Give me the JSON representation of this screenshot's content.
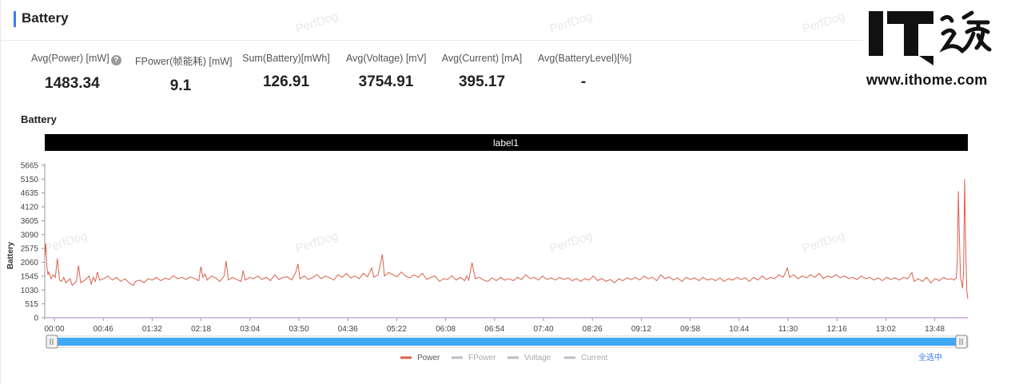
{
  "header": {
    "title": "Battery"
  },
  "stats": [
    {
      "label": "Avg(Power) [mW]",
      "value": "1483.34",
      "has_help": true
    },
    {
      "label": "FPower(帧能耗) [mW]",
      "value": "9.1",
      "has_help": false
    },
    {
      "label": "Sum(Battery)[mWh]",
      "value": "126.91",
      "has_help": false
    },
    {
      "label": "Avg(Voltage) [mV]",
      "value": "3754.91",
      "has_help": false
    },
    {
      "label": "Avg(Current) [mA]",
      "value": "395.17",
      "has_help": false
    },
    {
      "label": "Avg(BatteryLevel)[%]",
      "value": "-",
      "has_help": false
    }
  ],
  "watermark": "PerfDog",
  "logo": {
    "text": "IT之家",
    "url": "www.ithome.com"
  },
  "select_all_label": "全选中",
  "colors": {
    "accent": "#3b7cf4",
    "label_bar": "#ee5766",
    "power_line": "#d9604a",
    "slider": "#3fa9f5",
    "inactive_legend": "#b8bcc4"
  },
  "chart_data": {
    "type": "line",
    "title": "Battery",
    "ylabel": "Battery",
    "label_band": "label1",
    "yticks": [
      0,
      515,
      1030,
      1545,
      2060,
      2575,
      3090,
      3605,
      4120,
      4635,
      5150,
      5665
    ],
    "ylim": [
      0,
      5665
    ],
    "xticks": [
      "00:00",
      "00:46",
      "01:32",
      "02:18",
      "03:04",
      "03:50",
      "04:36",
      "05:22",
      "06:08",
      "06:54",
      "07:40",
      "08:26",
      "09:12",
      "09:58",
      "10:44",
      "11:30",
      "12:16",
      "13:02",
      "13:48"
    ],
    "xlim_minutes": [
      0,
      875
    ],
    "legend": [
      "Power",
      "FPower",
      "Voltage",
      "Current"
    ],
    "active_series": "Power",
    "series": [
      {
        "name": "Power",
        "points": [
          [
            0,
            2300
          ],
          [
            1,
            2750
          ],
          [
            2,
            1900
          ],
          [
            3,
            1600
          ],
          [
            4,
            1700
          ],
          [
            6,
            1450
          ],
          [
            8,
            1600
          ],
          [
            10,
            1500
          ],
          [
            12,
            2200
          ],
          [
            14,
            1400
          ],
          [
            16,
            1350
          ],
          [
            18,
            1500
          ],
          [
            20,
            1300
          ],
          [
            24,
            1450
          ],
          [
            26,
            1200
          ],
          [
            30,
            1350
          ],
          [
            32,
            1950
          ],
          [
            34,
            1300
          ],
          [
            38,
            1400
          ],
          [
            42,
            1550
          ],
          [
            44,
            1250
          ],
          [
            46,
            1500
          ],
          [
            48,
            1350
          ],
          [
            50,
            1700
          ],
          [
            52,
            1400
          ],
          [
            56,
            1450
          ],
          [
            60,
            1550
          ],
          [
            64,
            1400
          ],
          [
            68,
            1500
          ],
          [
            72,
            1350
          ],
          [
            76,
            1450
          ],
          [
            80,
            1300
          ],
          [
            84,
            1200
          ],
          [
            86,
            1350
          ],
          [
            90,
            1400
          ],
          [
            94,
            1300
          ],
          [
            98,
            1450
          ],
          [
            102,
            1400
          ],
          [
            106,
            1500
          ],
          [
            110,
            1380
          ],
          [
            114,
            1470
          ],
          [
            118,
            1420
          ],
          [
            122,
            1560
          ],
          [
            126,
            1450
          ],
          [
            130,
            1500
          ],
          [
            134,
            1420
          ],
          [
            138,
            1520
          ],
          [
            142,
            1460
          ],
          [
            146,
            1380
          ],
          [
            148,
            1900
          ],
          [
            150,
            1500
          ],
          [
            152,
            1620
          ],
          [
            154,
            1400
          ],
          [
            158,
            1550
          ],
          [
            162,
            1480
          ],
          [
            166,
            1350
          ],
          [
            170,
            1550
          ],
          [
            172,
            2100
          ],
          [
            174,
            1400
          ],
          [
            178,
            1500
          ],
          [
            182,
            1420
          ],
          [
            186,
            1350
          ],
          [
            188,
            1750
          ],
          [
            190,
            1400
          ],
          [
            194,
            1500
          ],
          [
            198,
            1450
          ],
          [
            202,
            1550
          ],
          [
            206,
            1420
          ],
          [
            210,
            1500
          ],
          [
            214,
            1380
          ],
          [
            218,
            1600
          ],
          [
            222,
            1420
          ],
          [
            226,
            1500
          ],
          [
            230,
            1520
          ],
          [
            234,
            1400
          ],
          [
            238,
            1700
          ],
          [
            240,
            2000
          ],
          [
            242,
            1450
          ],
          [
            246,
            1550
          ],
          [
            250,
            1420
          ],
          [
            254,
            1500
          ],
          [
            258,
            1600
          ],
          [
            262,
            1450
          ],
          [
            266,
            1550
          ],
          [
            270,
            1480
          ],
          [
            274,
            1400
          ],
          [
            278,
            1600
          ],
          [
            282,
            1500
          ],
          [
            286,
            1650
          ],
          [
            290,
            1480
          ],
          [
            294,
            1550
          ],
          [
            298,
            1450
          ],
          [
            302,
            1650
          ],
          [
            306,
            1520
          ],
          [
            310,
            1850
          ],
          [
            312,
            1500
          ],
          [
            316,
            1600
          ],
          [
            320,
            2350
          ],
          [
            322,
            1550
          ],
          [
            326,
            1680
          ],
          [
            330,
            1600
          ],
          [
            334,
            1520
          ],
          [
            338,
            1700
          ],
          [
            342,
            1550
          ],
          [
            346,
            1480
          ],
          [
            350,
            1600
          ],
          [
            354,
            1500
          ],
          [
            358,
            1650
          ],
          [
            362,
            1420
          ],
          [
            366,
            1500
          ],
          [
            370,
            1550
          ],
          [
            374,
            1350
          ],
          [
            378,
            1450
          ],
          [
            382,
            1420
          ],
          [
            386,
            1560
          ],
          [
            390,
            1400
          ],
          [
            394,
            1500
          ],
          [
            398,
            1380
          ],
          [
            400,
            1550
          ],
          [
            402,
            1400
          ],
          [
            405,
            2050
          ],
          [
            408,
            1450
          ],
          [
            412,
            1500
          ],
          [
            416,
            1400
          ],
          [
            420,
            1350
          ],
          [
            424,
            1480
          ],
          [
            428,
            1380
          ],
          [
            432,
            1500
          ],
          [
            436,
            1400
          ],
          [
            440,
            1450
          ],
          [
            444,
            1380
          ],
          [
            448,
            1500
          ],
          [
            452,
            1420
          ],
          [
            456,
            1600
          ],
          [
            460,
            1450
          ],
          [
            464,
            1500
          ],
          [
            468,
            1400
          ],
          [
            472,
            1550
          ],
          [
            476,
            1420
          ],
          [
            480,
            1480
          ],
          [
            484,
            1400
          ],
          [
            488,
            1500
          ],
          [
            492,
            1420
          ],
          [
            496,
            1480
          ],
          [
            500,
            1380
          ],
          [
            504,
            1450
          ],
          [
            508,
            1350
          ],
          [
            512,
            1450
          ],
          [
            516,
            1400
          ],
          [
            520,
            1550
          ],
          [
            524,
            1380
          ],
          [
            528,
            1460
          ],
          [
            532,
            1350
          ],
          [
            536,
            1420
          ],
          [
            540,
            1300
          ],
          [
            544,
            1450
          ],
          [
            548,
            1380
          ],
          [
            552,
            1480
          ],
          [
            556,
            1420
          ],
          [
            560,
            1500
          ],
          [
            564,
            1400
          ],
          [
            568,
            1550
          ],
          [
            572,
            1450
          ],
          [
            576,
            1500
          ],
          [
            580,
            1380
          ],
          [
            584,
            1600
          ],
          [
            588,
            1450
          ],
          [
            592,
            1520
          ],
          [
            596,
            1400
          ],
          [
            600,
            1480
          ],
          [
            604,
            1350
          ],
          [
            608,
            1500
          ],
          [
            612,
            1420
          ],
          [
            616,
            1480
          ],
          [
            620,
            1380
          ],
          [
            624,
            1500
          ],
          [
            628,
            1400
          ],
          [
            632,
            1450
          ],
          [
            636,
            1380
          ],
          [
            640,
            1480
          ],
          [
            644,
            1350
          ],
          [
            648,
            1450
          ],
          [
            652,
            1400
          ],
          [
            656,
            1500
          ],
          [
            660,
            1420
          ],
          [
            664,
            1480
          ],
          [
            668,
            1350
          ],
          [
            672,
            1500
          ],
          [
            676,
            1400
          ],
          [
            680,
            1550
          ],
          [
            684,
            1420
          ],
          [
            688,
            1500
          ],
          [
            692,
            1450
          ],
          [
            696,
            1600
          ],
          [
            700,
            1500
          ],
          [
            704,
            1850
          ],
          [
            706,
            1500
          ],
          [
            710,
            1600
          ],
          [
            714,
            1450
          ],
          [
            718,
            1550
          ],
          [
            722,
            1480
          ],
          [
            726,
            1600
          ],
          [
            730,
            1500
          ],
          [
            734,
            1650
          ],
          [
            738,
            1450
          ],
          [
            742,
            1550
          ],
          [
            746,
            1500
          ],
          [
            750,
            1600
          ],
          [
            754,
            1480
          ],
          [
            758,
            1550
          ],
          [
            762,
            1450
          ],
          [
            766,
            1500
          ],
          [
            770,
            1420
          ],
          [
            774,
            1550
          ],
          [
            778,
            1450
          ],
          [
            782,
            1500
          ],
          [
            786,
            1400
          ],
          [
            790,
            1480
          ],
          [
            794,
            1380
          ],
          [
            798,
            1500
          ],
          [
            802,
            1420
          ],
          [
            806,
            1480
          ],
          [
            810,
            1400
          ],
          [
            814,
            1500
          ],
          [
            818,
            1450
          ],
          [
            822,
            1680
          ],
          [
            824,
            1350
          ],
          [
            828,
            1450
          ],
          [
            832,
            1350
          ],
          [
            836,
            1500
          ],
          [
            840,
            1300
          ],
          [
            844,
            1450
          ],
          [
            848,
            1380
          ],
          [
            852,
            1500
          ],
          [
            856,
            1420
          ],
          [
            860,
            1450
          ],
          [
            862,
            1400
          ],
          [
            864,
            1480
          ],
          [
            865,
            2100
          ],
          [
            866,
            4700
          ],
          [
            867,
            3000
          ],
          [
            868,
            1500
          ],
          [
            870,
            1100
          ],
          [
            871,
            1800
          ],
          [
            872,
            5150
          ],
          [
            873,
            2500
          ],
          [
            874,
            1000
          ],
          [
            875,
            700
          ]
        ]
      }
    ]
  }
}
